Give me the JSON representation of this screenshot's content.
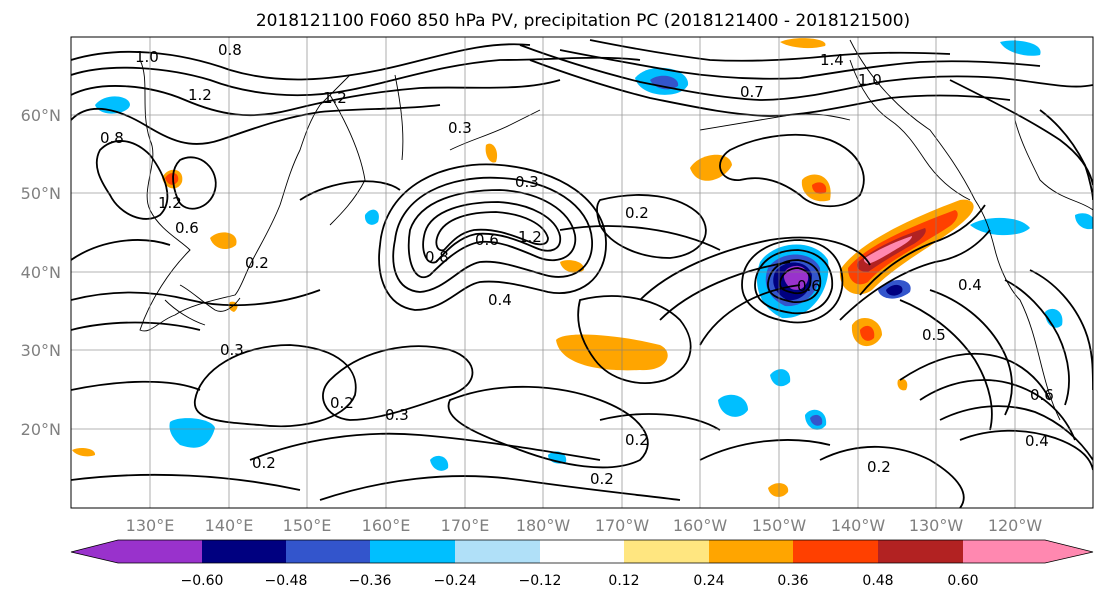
{
  "title": "2018121100 F060 850 hPa PV, precipitation PC (2018121400 - 2018121500)",
  "lat_labels": [
    "60°N",
    "50°N",
    "40°N",
    "30°N",
    "20°N"
  ],
  "lon_labels": [
    "130°E",
    "140°E",
    "150°E",
    "160°E",
    "170°E",
    "180°W",
    "170°W",
    "160°W",
    "150°W",
    "140°W",
    "130°W",
    "120°W"
  ],
  "colorbar": {
    "ticks": [
      "−0.60",
      "−0.48",
      "−0.36",
      "−0.24",
      "−0.12",
      "0.12",
      "0.24",
      "0.36",
      "0.48",
      "0.60"
    ],
    "colors": [
      "#9932cc",
      "#000080",
      "#3355cc",
      "#00bfff",
      "#b0e0f8",
      "#ffffff",
      "#ffe680",
      "#ffa500",
      "#ff4000",
      "#b22222",
      "#ff88b0"
    ]
  },
  "contour_labels": [
    "1.0",
    "0.8",
    "1.2",
    "1.2",
    "0.8",
    "0.6",
    "1.2",
    "0.2",
    "0.3",
    "0.2",
    "0.3",
    "0.2",
    "0.3",
    "0.4",
    "0.8",
    "0.6",
    "1.2",
    "0.3",
    "1.4",
    "1.0",
    "0.7",
    "0.2",
    "0.6",
    "0.5",
    "0.4",
    "0.6",
    "0.4",
    "0.2",
    "0.2",
    "0.2"
  ]
}
